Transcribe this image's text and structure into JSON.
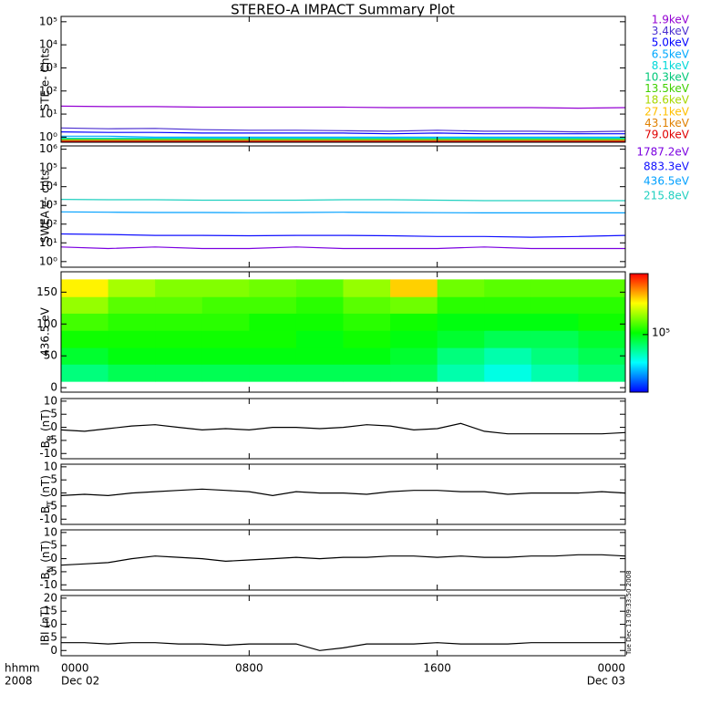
{
  "chart_data": [
    {
      "type": "line",
      "title": "STEREO-A IMPACT Summary Plot",
      "ylabel": "STE e- Cnts",
      "ylog": true,
      "ylim": [
        0.6,
        170000
      ],
      "yticks": [
        {
          "value": 1,
          "label": "10⁰"
        },
        {
          "value": 10,
          "label": "10¹"
        },
        {
          "value": 100,
          "label": "10²"
        },
        {
          "value": 1000,
          "label": "10³"
        },
        {
          "value": 10000,
          "label": "10⁴"
        },
        {
          "value": 100000,
          "label": "10⁵"
        }
      ],
      "x": [
        0,
        2,
        4,
        6,
        8,
        10,
        12,
        14,
        16,
        18,
        20,
        22,
        24
      ],
      "series": [
        {
          "name": "1.9keV",
          "color": "#9400d3",
          "values": [
            22,
            21,
            21,
            20,
            20,
            20,
            20,
            19,
            19,
            19,
            19,
            18,
            19
          ]
        },
        {
          "name": "3.4keV",
          "color": "#4b2fd0",
          "values": [
            2.5,
            2.3,
            2.4,
            2.1,
            2,
            2,
            1.9,
            1.8,
            2,
            1.8,
            1.8,
            1.7,
            1.8
          ]
        },
        {
          "name": "5.0keV",
          "color": "#0000ff",
          "values": [
            1.7,
            1.6,
            1.6,
            1.5,
            1.5,
            1.5,
            1.5,
            1.4,
            1.5,
            1.4,
            1.4,
            1.4,
            1.4
          ]
        },
        {
          "name": "6.5keV",
          "color": "#00a8ff",
          "values": [
            1.1,
            1.1,
            1,
            1,
            1,
            1,
            1,
            1,
            1,
            1,
            1,
            1,
            1
          ]
        },
        {
          "name": "8.1keV",
          "color": "#00d8d8",
          "values": [
            0.9,
            0.9,
            0.9,
            0.9,
            0.9,
            0.9,
            0.9,
            0.9,
            0.9,
            0.9,
            0.9,
            0.9,
            0.9
          ]
        },
        {
          "name": "10.3keV",
          "color": "#00c878",
          "values": [
            0.8,
            0.8,
            0.8,
            0.8,
            0.8,
            0.8,
            0.8,
            0.8,
            0.8,
            0.8,
            0.8,
            0.8,
            0.8
          ]
        },
        {
          "name": "13.5keV",
          "color": "#40d000",
          "values": [
            0.8,
            0.8,
            0.8,
            0.8,
            0.8,
            0.8,
            0.8,
            0.8,
            0.8,
            0.8,
            0.8,
            0.8,
            0.8
          ]
        },
        {
          "name": "18.6keV",
          "color": "#a8d800",
          "values": [
            0.7,
            0.7,
            0.7,
            0.7,
            0.7,
            0.7,
            0.7,
            0.7,
            0.7,
            0.7,
            0.7,
            0.7,
            0.7
          ]
        },
        {
          "name": "27.1keV",
          "color": "#ffc000",
          "values": [
            0.7,
            0.7,
            0.7,
            0.7,
            0.7,
            0.7,
            0.7,
            0.7,
            0.7,
            0.7,
            0.7,
            0.7,
            0.7
          ]
        },
        {
          "name": "43.1keV",
          "color": "#e08000",
          "values": [
            0.7,
            0.7,
            0.7,
            0.7,
            0.7,
            0.7,
            0.7,
            0.7,
            0.7,
            0.7,
            0.7,
            0.7,
            0.7
          ]
        },
        {
          "name": "79.0keV",
          "color": "#e00000",
          "values": [
            0.65,
            0.65,
            0.65,
            0.65,
            0.65,
            0.65,
            0.65,
            0.65,
            0.65,
            0.65,
            0.65,
            0.65,
            0.65
          ]
        }
      ]
    },
    {
      "type": "line",
      "ylabel": "SWEA e- cnts",
      "ylog": true,
      "ylim": [
        0.5,
        1500000
      ],
      "yticks": [
        {
          "value": 1,
          "label": "10⁰"
        },
        {
          "value": 10,
          "label": "10¹"
        },
        {
          "value": 100,
          "label": "10²"
        },
        {
          "value": 1000,
          "label": "10³"
        },
        {
          "value": 10000,
          "label": "10⁴"
        },
        {
          "value": 100000,
          "label": "10⁵"
        },
        {
          "value": 1000000,
          "label": "10⁶"
        }
      ],
      "x": [
        0,
        2,
        4,
        6,
        8,
        10,
        12,
        14,
        16,
        18,
        20,
        22,
        24
      ],
      "series": [
        {
          "name": "1787.2eV",
          "color": "#7b00e0",
          "values": [
            6,
            5,
            6,
            5,
            5,
            6,
            5,
            5,
            5,
            6,
            5,
            5,
            5
          ]
        },
        {
          "name": "883.3eV",
          "color": "#1010ff",
          "values": [
            30,
            28,
            25,
            25,
            24,
            25,
            25,
            24,
            22,
            22,
            20,
            22,
            25
          ]
        },
        {
          "name": "436.5eV",
          "color": "#00a0ff",
          "values": [
            450,
            430,
            420,
            420,
            410,
            420,
            430,
            420,
            410,
            400,
            400,
            400,
            400
          ]
        },
        {
          "name": "215.8eV",
          "color": "#20d0c0",
          "values": [
            2100,
            2000,
            2000,
            1900,
            1900,
            1900,
            2000,
            2000,
            1900,
            1800,
            1800,
            1800,
            1800
          ]
        }
      ]
    },
    {
      "type": "spectrogram",
      "ylabel": "436.5 eV",
      "ylim": [
        -7,
        182
      ],
      "yticks": [
        0,
        50,
        100,
        150
      ],
      "xbins": [
        0,
        2,
        4,
        6,
        8,
        10,
        12,
        14,
        16,
        18,
        20,
        22,
        24
      ],
      "ybins": [
        10,
        37,
        63,
        90,
        117,
        143,
        170
      ],
      "z": [
        [
          70000,
          80000,
          80000,
          80000,
          80000,
          80000,
          80000,
          80000,
          60000,
          50000,
          60000,
          70000
        ],
        [
          90000,
          100000,
          100000,
          100000,
          100000,
          100000,
          100000,
          90000,
          70000,
          60000,
          70000,
          80000
        ],
        [
          110000,
          110000,
          110000,
          110000,
          110000,
          100000,
          110000,
          100000,
          90000,
          80000,
          80000,
          90000
        ],
        [
          130000,
          120000,
          120000,
          120000,
          110000,
          110000,
          120000,
          110000,
          100000,
          100000,
          100000,
          110000
        ],
        [
          170000,
          140000,
          140000,
          130000,
          130000,
          120000,
          140000,
          150000,
          120000,
          120000,
          120000,
          120000
        ],
        [
          250000,
          180000,
          160000,
          160000,
          150000,
          140000,
          170000,
          280000,
          150000,
          140000,
          140000,
          140000
        ]
      ],
      "colorbar": {
        "zlog": true,
        "zlim": [
          20000,
          550000
        ],
        "zticks": [
          {
            "value": 100000,
            "label": "10⁵"
          }
        ]
      }
    },
    {
      "type": "line",
      "ylabel_parts": [
        "B",
        "R",
        " (nT)"
      ],
      "ylim": [
        -12,
        11
      ],
      "yticks": [
        -10,
        -5,
        0,
        5,
        10
      ],
      "x": [
        0,
        1,
        2,
        3,
        4,
        5,
        6,
        7,
        8,
        9,
        10,
        11,
        12,
        13,
        14,
        15,
        16,
        17,
        18,
        19,
        20,
        21,
        22,
        23,
        24
      ],
      "series": [
        {
          "color": "#000000",
          "values": [
            -1,
            -1.5,
            -0.5,
            0.5,
            1,
            0,
            -1,
            -0.5,
            -1,
            0,
            0,
            -0.5,
            0,
            1,
            0.5,
            -1,
            -0.5,
            1.5,
            -1.5,
            -2.5,
            -2.5,
            -2.5,
            -2.5,
            -2.5,
            -2
          ]
        }
      ]
    },
    {
      "type": "line",
      "ylabel_parts": [
        "B",
        "T",
        " (nT)"
      ],
      "ylim": [
        -12,
        11
      ],
      "yticks": [
        -10,
        -5,
        0,
        5,
        10
      ],
      "x": [
        0,
        1,
        2,
        3,
        4,
        5,
        6,
        7,
        8,
        9,
        10,
        11,
        12,
        13,
        14,
        15,
        16,
        17,
        18,
        19,
        20,
        21,
        22,
        23,
        24
      ],
      "series": [
        {
          "color": "#000000",
          "values": [
            -1,
            -0.5,
            -1,
            0,
            0.5,
            1,
            1.5,
            1,
            0.5,
            -1,
            0.5,
            0,
            0,
            -0.5,
            0.5,
            1,
            1,
            0.5,
            0.5,
            -0.5,
            0,
            0,
            0,
            0.5,
            0
          ]
        }
      ]
    },
    {
      "type": "line",
      "ylabel_parts": [
        "B",
        "N",
        " (nT)"
      ],
      "ylim": [
        -12,
        11
      ],
      "yticks": [
        -10,
        -5,
        0,
        5,
        10
      ],
      "x": [
        0,
        1,
        2,
        3,
        4,
        5,
        6,
        7,
        8,
        9,
        10,
        11,
        12,
        13,
        14,
        15,
        16,
        17,
        18,
        19,
        20,
        21,
        22,
        23,
        24
      ],
      "series": [
        {
          "color": "#000000",
          "values": [
            -2.5,
            -2,
            -1.5,
            0,
            1,
            0.5,
            0,
            -1,
            -0.5,
            0,
            0.5,
            0,
            0.5,
            0.5,
            1,
            1,
            0.5,
            1,
            0.5,
            0.5,
            1,
            1,
            1.5,
            1.5,
            1
          ]
        }
      ]
    },
    {
      "type": "line",
      "ylabel": "IBI (nT)",
      "ylim": [
        -2,
        21
      ],
      "yticks": [
        0,
        5,
        10,
        15,
        20
      ],
      "x": [
        0,
        1,
        2,
        3,
        4,
        5,
        6,
        7,
        8,
        9,
        10,
        11,
        12,
        13,
        14,
        15,
        16,
        17,
        18,
        19,
        20,
        21,
        22,
        23,
        24
      ],
      "series": [
        {
          "color": "#000000",
          "values": [
            3,
            3,
            2.5,
            3,
            3,
            2.5,
            2.5,
            2,
            2.5,
            2.5,
            2.5,
            0,
            1,
            2.5,
            2.5,
            2.5,
            3,
            2.5,
            2.5,
            2.5,
            3,
            3,
            3,
            3,
            3
          ]
        }
      ]
    }
  ],
  "x_axis": {
    "xlim": [
      0,
      24
    ],
    "xticks": [
      {
        "value": 0,
        "label": "0000"
      },
      {
        "value": 8,
        "label": "0800"
      },
      {
        "value": 16,
        "label": "1600"
      },
      {
        "value": 24,
        "label": "0000"
      }
    ],
    "date_labels": [
      {
        "value": 0,
        "label": "Dec 02"
      },
      {
        "value": 24,
        "label": "Dec 03"
      }
    ],
    "row_labels": [
      "hhmm",
      "2008"
    ]
  },
  "timestamp": "Tue Dec 13 09:33:50 2008"
}
